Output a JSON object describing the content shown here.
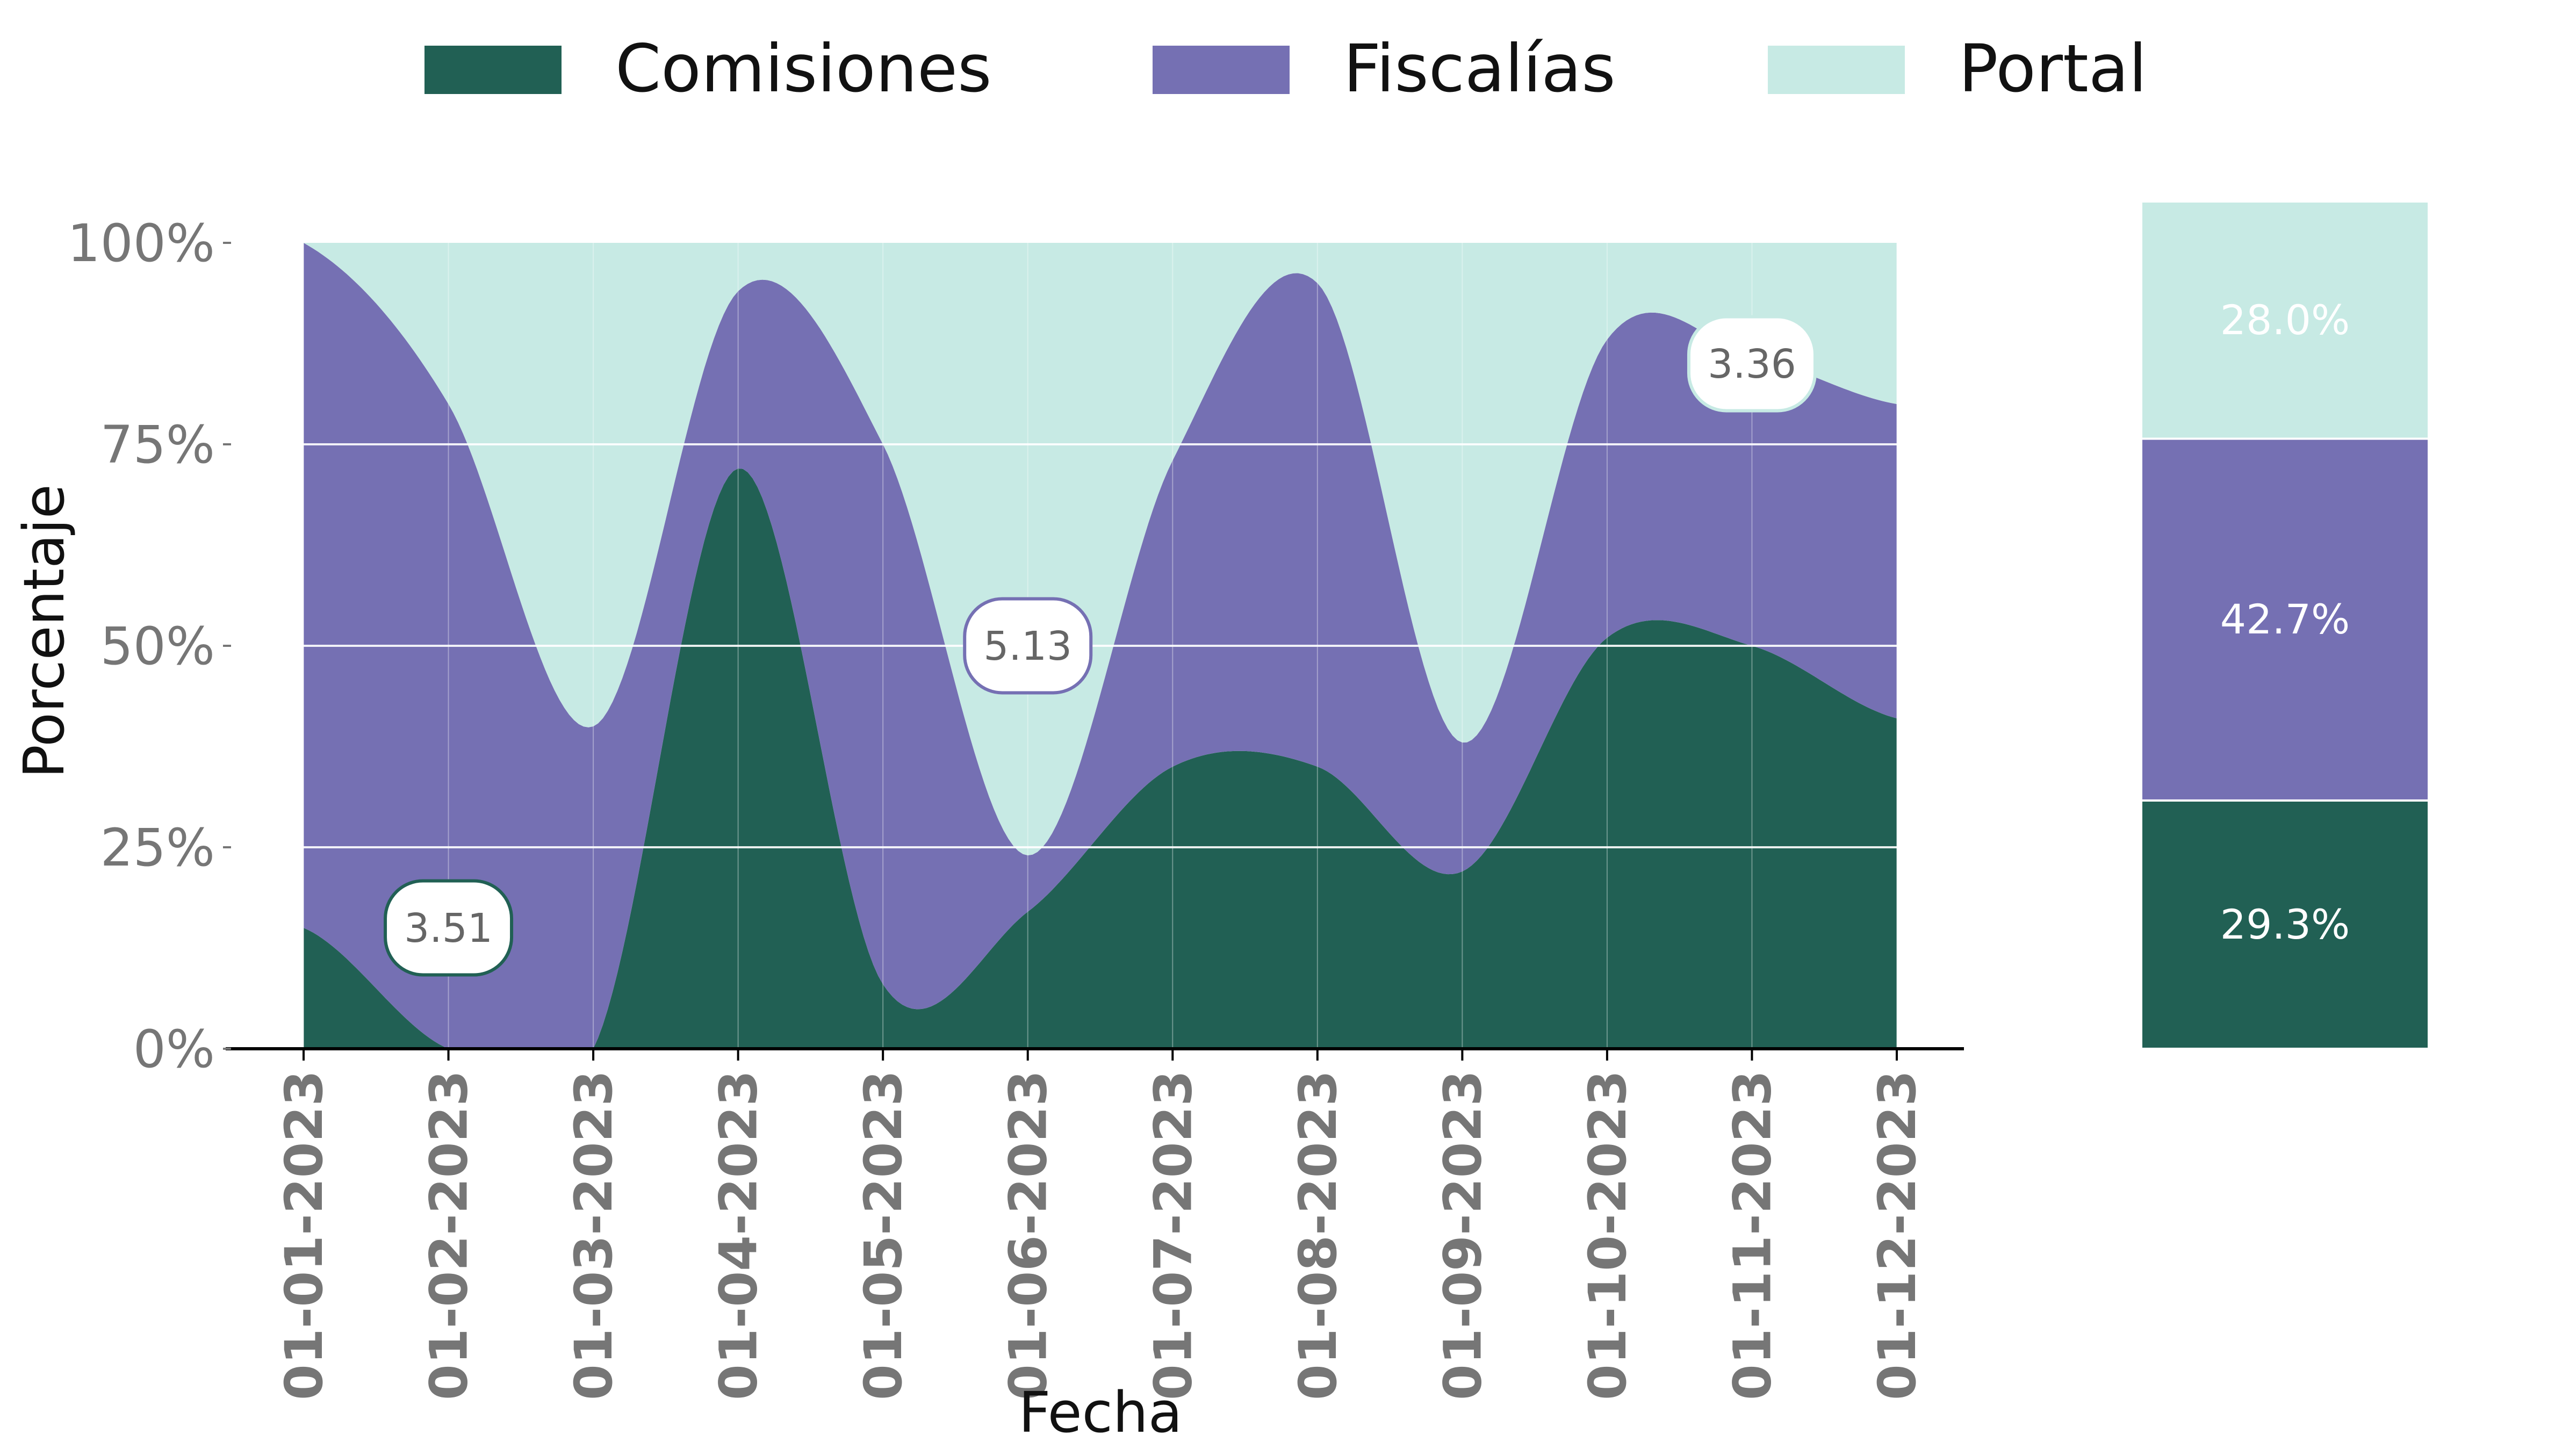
{
  "chart_data": {
    "type": "area",
    "stacking": "percent",
    "x": [
      "01-01-2023",
      "01-02-2023",
      "01-03-2023",
      "01-04-2023",
      "01-05-2023",
      "01-06-2023",
      "01-07-2023",
      "01-08-2023",
      "01-09-2023",
      "01-10-2023",
      "01-11-2023",
      "01-12-2023"
    ],
    "series": [
      {
        "name": "Comisiones",
        "color": "#216054",
        "values": [
          15,
          0,
          0,
          72,
          8,
          17,
          35,
          35,
          22,
          51,
          50,
          41
        ]
      },
      {
        "name": "Fiscalías",
        "color": "#7570b3",
        "values": [
          85,
          80,
          40,
          22,
          67,
          7,
          38,
          60,
          16,
          37,
          36,
          39
        ]
      },
      {
        "name": "Portal",
        "color": "#c7eae4",
        "values": [
          0,
          20,
          60,
          6,
          25,
          76,
          27,
          5,
          62,
          12,
          14,
          20
        ]
      }
    ],
    "xlabel": "Fecha",
    "ylabel": "Porcentaje",
    "y_ticks": [
      "0%",
      "25%",
      "50%",
      "75%",
      "100%"
    ],
    "ylim": [
      0,
      100
    ],
    "legend_position": "top-center",
    "grid": true,
    "annotations": [
      {
        "x": "01-02-2023",
        "y": 15,
        "label": "3.51",
        "series": "Comisiones"
      },
      {
        "x": "01-06-2023",
        "y": 50,
        "label": "5.13",
        "series": "Fiscalías"
      },
      {
        "x": "01-11-2023",
        "y": 85,
        "label": "3.36",
        "series": "Portal"
      }
    ],
    "totals_bar": [
      {
        "series": "Comisiones",
        "label": "29.3%",
        "value": 29.3
      },
      {
        "series": "Fiscalías",
        "label": "42.7%",
        "value": 42.7
      },
      {
        "series": "Portal",
        "label": "28.0%",
        "value": 28.0
      }
    ]
  }
}
